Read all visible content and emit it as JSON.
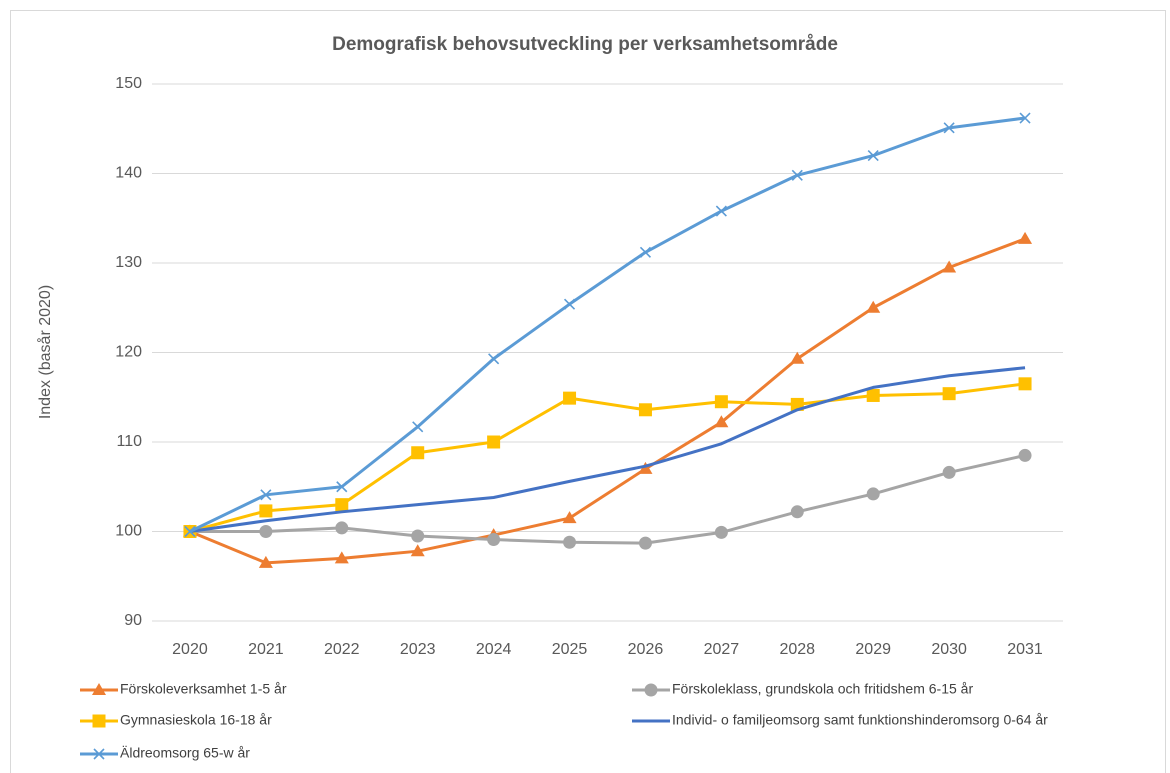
{
  "chart_data": {
    "type": "line",
    "title": "Demografisk behovsutveckling per verksamhetsområde",
    "y_label": "Index (basår 2020)",
    "categories": [
      "2020",
      "2021",
      "2022",
      "2023",
      "2024",
      "2025",
      "2026",
      "2027",
      "2028",
      "2029",
      "2030",
      "2031"
    ],
    "ylim": [
      90,
      150
    ],
    "yticks": [
      90,
      100,
      110,
      120,
      130,
      140,
      150
    ],
    "grid": true,
    "legend": "bottom",
    "series": [
      {
        "name": "Förskoleverksamhet 1-5 år",
        "color": "#ed7d31",
        "marker": "triangle",
        "values": [
          100,
          96.5,
          97.0,
          97.8,
          99.6,
          101.5,
          107.0,
          112.2,
          119.3,
          125.0,
          129.5,
          132.7
        ]
      },
      {
        "name": "Förskoleklass, grundskola och fritidshem 6-15 år",
        "color": "#a5a5a5",
        "marker": "circle",
        "values": [
          100,
          100,
          100.4,
          99.5,
          99.1,
          98.8,
          98.7,
          99.9,
          102.2,
          104.2,
          106.6,
          108.5
        ]
      },
      {
        "name": "Gymnasieskola 16-18 år",
        "color": "#ffc000",
        "marker": "square",
        "values": [
          100,
          102.3,
          103.0,
          108.8,
          110.0,
          114.9,
          113.6,
          114.5,
          114.2,
          115.2,
          115.4,
          116.5
        ]
      },
      {
        "name": "Individ- o familjeomsorg samt funktionshinderomsorg 0-64 år",
        "color": "#4472c4",
        "marker": "none",
        "values": [
          100,
          101.2,
          102.2,
          103.0,
          103.8,
          105.6,
          107.3,
          109.8,
          113.6,
          116.1,
          117.4,
          118.3
        ]
      },
      {
        "name": "Äldreomsorg 65-w år",
        "color": "#5b9bd5",
        "marker": "x",
        "values": [
          100,
          104.1,
          105.0,
          111.7,
          119.3,
          125.4,
          131.2,
          135.8,
          139.8,
          142.0,
          145.1,
          146.2
        ]
      }
    ]
  }
}
